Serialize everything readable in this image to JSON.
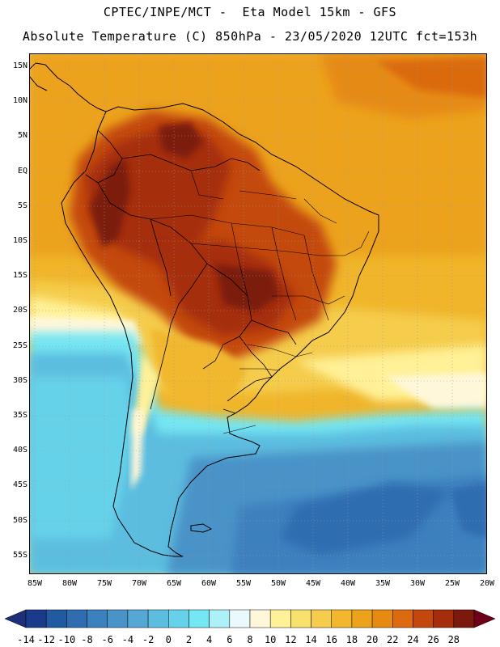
{
  "header": {
    "line1": "CPTEC/INPE/MCT -  Eta Model 15km - GFS",
    "line2": "Absolute Temperature (C) 850hPa - 23/05/2020 12UTC fct=153h"
  },
  "map": {
    "lat_labels": [
      "15N",
      "10N",
      "5N",
      "EQ",
      "5S",
      "10S",
      "15S",
      "20S",
      "25S",
      "30S",
      "35S",
      "40S",
      "45S",
      "50S",
      "55S"
    ],
    "lon_labels": [
      "85W",
      "80W",
      "75W",
      "70W",
      "65W",
      "60W",
      "55W",
      "50W",
      "45W",
      "40W",
      "35W",
      "30W",
      "25W",
      "20W"
    ]
  },
  "colorbar": {
    "labels": [
      "-14",
      "-12",
      "-10",
      "-8",
      "-6",
      "-4",
      "-2",
      "0",
      "2",
      "4",
      "6",
      "8",
      "10",
      "12",
      "14",
      "16",
      "18",
      "20",
      "22",
      "24",
      "26",
      "28"
    ],
    "colors": [
      "#1a3a8a",
      "#225aa0",
      "#2f6db0",
      "#3c80be",
      "#4a93c8",
      "#55a7d4",
      "#5cbddf",
      "#66d2ea",
      "#75e6f3",
      "#aef0f7",
      "#eaf9fb",
      "#fff7da",
      "#fff197",
      "#f9e16d",
      "#f5cc4b",
      "#f1b72f",
      "#eca21a",
      "#e68a12",
      "#db6a10",
      "#c4480e",
      "#a52d0c",
      "#7b1a0c"
    ],
    "low_arrow_color": "#1c2f78",
    "high_arrow_color": "#6e0018"
  }
}
